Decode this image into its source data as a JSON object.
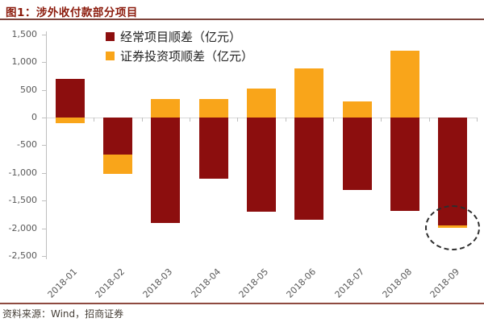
{
  "header": {
    "title": "图1：涉外收付款部分项目"
  },
  "chart_data": {
    "type": "bar",
    "stacked": true,
    "title": "图1：涉外收付款部分项目",
    "categories": [
      "2018-01",
      "2018-02",
      "2018-03",
      "2018-04",
      "2018-05",
      "2018-06",
      "2018-07",
      "2018-08",
      "2018-09"
    ],
    "series": [
      {
        "name": "经常项目顺差（亿元）",
        "color": "#8C0E0E",
        "values": [
          700,
          -670,
          -1900,
          -1100,
          -1700,
          -1850,
          -1310,
          -1690,
          -1950
        ]
      },
      {
        "name": "证券投资项顺差（亿元）",
        "color": "#F9A51A",
        "values": [
          -100,
          -350,
          330,
          340,
          530,
          880,
          290,
          1200,
          -40
        ]
      }
    ],
    "ylim": [
      -2500,
      1500
    ],
    "ytick_step": 500,
    "grid": "zero-line-only",
    "legend_position": "top-center",
    "xlabel": "",
    "ylabel": "",
    "highlight": {
      "category": "2018-09",
      "marker": "dashed-ellipse"
    }
  },
  "footer": {
    "source": "资料来源：Wind，招商证券"
  },
  "colors": {
    "accent_dark_red": "#8B1A0B",
    "series_current_account": "#8C0E0E",
    "series_securities": "#F9A51A",
    "axis_text": "#595959"
  }
}
